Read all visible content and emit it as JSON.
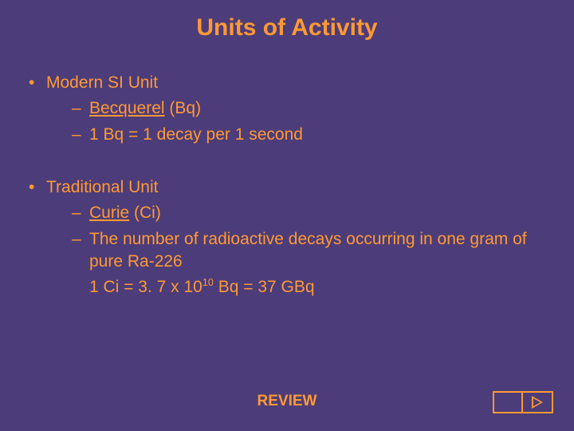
{
  "colors": {
    "background": "#4c3c7a",
    "text": "#ff9933",
    "accent": "#ff9933"
  },
  "title": "Units of Activity",
  "sections": [
    {
      "heading": "Modern SI Unit",
      "items": [
        {
          "underlined": "Becquerel",
          "rest": " (Bq)"
        },
        {
          "plain": "1 Bq = 1 decay per 1 second"
        }
      ]
    },
    {
      "heading": "Traditional Unit",
      "items": [
        {
          "underlined": "Curie",
          "rest": " (Ci)"
        },
        {
          "plain": "The number of radioactive decays  occurring in one gram of pure Ra-226"
        },
        {
          "continuation": true,
          "prefix": "1 Ci = 3. 7 x 10",
          "sup": "10",
          "suffix": " Bq = 37 GBq"
        }
      ]
    }
  ],
  "footer": {
    "review_label": "REVIEW"
  }
}
